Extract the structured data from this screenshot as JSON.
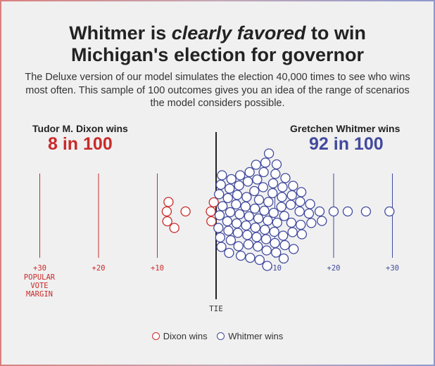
{
  "title": {
    "before": "Whitmer is ",
    "emphasis": "clearly favored",
    "after": " to win",
    "line2": "Michigan's election for governor"
  },
  "subtitle": "The Deluxe version of our model simulates the election 40,000 times to see who wins most often. This sample of 100 outcomes gives you an idea of the range of scenarios the model considers possible.",
  "left": {
    "label": "Tudor M. Dixon wins",
    "count": "8 in 100"
  },
  "right": {
    "label": "Gretchen Whitmer wins",
    "count": "92 in 100"
  },
  "legend": {
    "dixon": "Dixon wins",
    "whitmer": "Whitmer wins"
  },
  "colors": {
    "dixon": "#c92a2a",
    "whitmer": "#414a9c",
    "tie": "#222222",
    "background": "#f0f0f0"
  },
  "chart_data": {
    "type": "scatter",
    "description_style": "beeswarm",
    "xlabel": "POPULAR VOTE MARGIN",
    "tie_label": "TIE",
    "x_range": [
      -33,
      33
    ],
    "gridlines": [
      -30,
      -20,
      -10,
      10,
      20,
      30
    ],
    "ticks": [
      {
        "value": -30,
        "label": "+30",
        "side": "dixon"
      },
      {
        "value": -20,
        "label": "+20",
        "side": "dixon"
      },
      {
        "value": -10,
        "label": "+10",
        "side": "dixon"
      },
      {
        "value": 10,
        "label": "+10",
        "side": "whitmer"
      },
      {
        "value": 20,
        "label": "+20",
        "side": "whitmer"
      },
      {
        "value": 30,
        "label": "+30",
        "side": "whitmer"
      }
    ],
    "series": [
      {
        "name": "Dixon wins",
        "count": 8,
        "values": [
          -8.4,
          -8.3,
          -8.1,
          -7.1,
          -5.2,
          -0.9,
          -0.8,
          -0.4
        ]
      },
      {
        "name": "Whitmer wins",
        "count": 92,
        "values": [
          0.4,
          0.5,
          0.6,
          0.7,
          0.8,
          0.9,
          1.0,
          1.1,
          1.9,
          2.0,
          2.1,
          2.2,
          2.3,
          2.4,
          2.5,
          2.6,
          3.4,
          3.5,
          3.6,
          3.7,
          3.8,
          3.9,
          4.0,
          4.1,
          4.2,
          5.0,
          5.1,
          5.2,
          5.3,
          5.4,
          5.5,
          5.6,
          5.7,
          5.8,
          6.5,
          6.6,
          6.7,
          6.8,
          6.9,
          7.0,
          7.1,
          7.2,
          7.3,
          7.4,
          8.0,
          8.1,
          8.2,
          8.3,
          8.4,
          8.5,
          8.6,
          8.7,
          8.8,
          8.9,
          9.0,
          9.6,
          9.7,
          9.8,
          9.9,
          10.0,
          10.1,
          10.2,
          10.3,
          10.4,
          11.1,
          11.2,
          11.3,
          11.4,
          11.5,
          11.6,
          11.7,
          11.8,
          12.7,
          12.8,
          12.9,
          13.0,
          13.1,
          13.2,
          14.2,
          14.3,
          14.4,
          14.5,
          14.6,
          15.8,
          16.0,
          16.2,
          17.6,
          18.0,
          20.0,
          22.4,
          25.5,
          29.5
        ]
      }
    ]
  }
}
